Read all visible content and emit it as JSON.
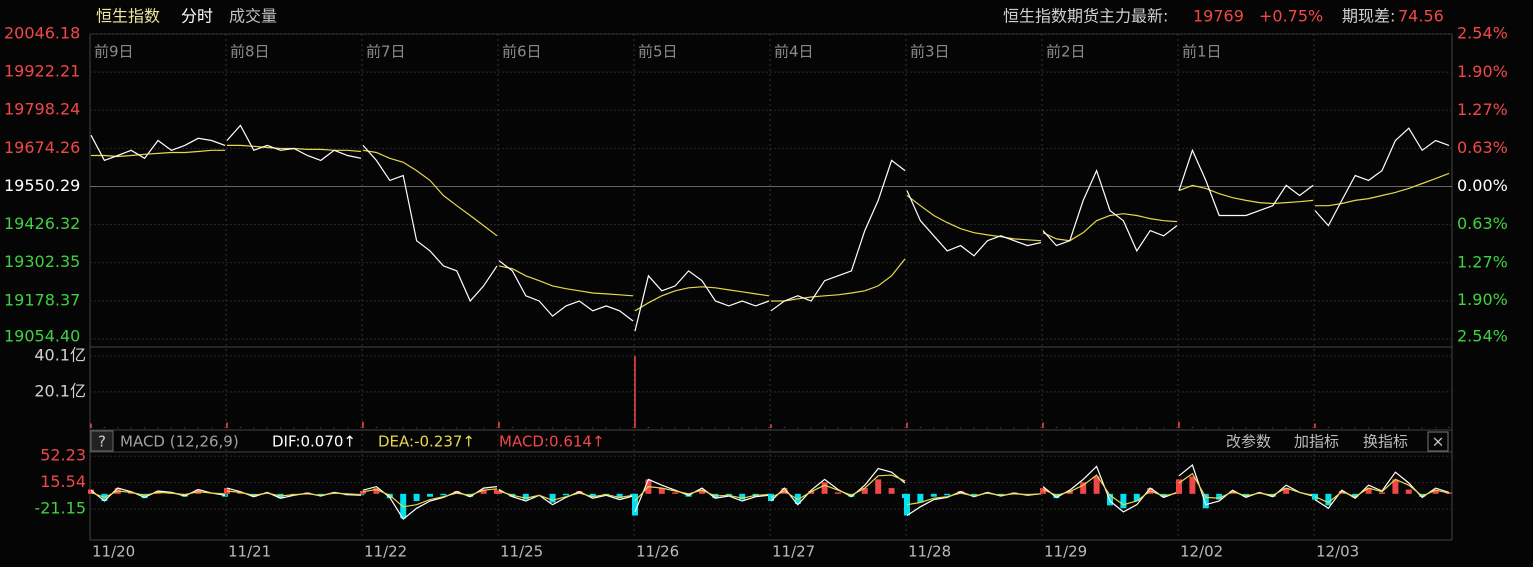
{
  "chart_data": {
    "type": "intraday",
    "header": {
      "title": "恒生指数",
      "tab1": "分时",
      "tab2": "成交量"
    },
    "futures": {
      "label": "恒生指数期货主力最新:",
      "price": 19769,
      "change": {
        "value": 0.75,
        "label": "+0.75%"
      },
      "spread_label": "期现差:",
      "spread": 74.56
    },
    "price_color": "#ffffff",
    "avg_color": "#e6d84a",
    "up_color": "#f04848",
    "down_color": "#3fd13f",
    "hist_up_color": "#f04848",
    "hist_down_color": "#00e0f0",
    "grid": true,
    "ylim": [
      19054.4,
      20046.18
    ],
    "yticks": [
      {
        "value": 20046.18,
        "label": "20046.18"
      },
      {
        "value": 19922.21,
        "label": "19922.21"
      },
      {
        "value": 19798.24,
        "label": "19798.24"
      },
      {
        "value": 19674.26,
        "label": "19674.26"
      },
      {
        "value": 19550.29,
        "label": "19550.29"
      },
      {
        "value": 19426.32,
        "label": "19426.32"
      },
      {
        "value": 19302.35,
        "label": "19302.35"
      },
      {
        "value": 19178.37,
        "label": "19178.37"
      },
      {
        "value": 19054.4,
        "label": "19054.40"
      }
    ],
    "y2lim": [
      -2.54,
      2.54
    ],
    "y2ticks": [
      {
        "value": 2.54,
        "label": "2.54%"
      },
      {
        "value": 1.9,
        "label": "1.90%"
      },
      {
        "value": 1.27,
        "label": "1.27%"
      },
      {
        "value": 0.63,
        "label": "0.63%"
      },
      {
        "value": 0,
        "label": "0.00%"
      },
      {
        "value": -0.63,
        "label": "0.63%"
      },
      {
        "value": -1.27,
        "label": "1.27%"
      },
      {
        "value": -1.9,
        "label": "1.90%"
      },
      {
        "value": -2.54,
        "label": "2.54%"
      }
    ],
    "volume_lim": [
      0,
      45
    ],
    "volume_ticks": [
      {
        "value": 40.1,
        "label": "40.1亿"
      },
      {
        "value": 20.1,
        "label": "20.1亿"
      }
    ],
    "macd_lim": [
      -64,
      58
    ],
    "macd_ticks": [
      52.23,
      15.54,
      -21.15
    ],
    "macd_header": {
      "help": "?",
      "name": "MACD (12,26,9)",
      "dif": "DIF:0.070↑",
      "dea": "DEA:-0.237↑",
      "macd": "MACD:0.614↑",
      "btn1": "改参数",
      "btn2": "加指标",
      "btn3": "换指标",
      "close": "×"
    },
    "days": [
      {
        "label": "前9日",
        "date": "11/20",
        "price": [
          19717,
          19635,
          19651,
          19668,
          19642,
          19700,
          19668,
          19684,
          19707,
          19700,
          19684
        ],
        "avg": [
          19651,
          19651,
          19648,
          19651,
          19655,
          19658,
          19661,
          19661,
          19664,
          19668,
          19668
        ],
        "volume": [
          2.5,
          0.3,
          0.2,
          0.2,
          0.2,
          0.2,
          0.2,
          0.2,
          0.2,
          0.2,
          0.3
        ],
        "dif": [
          5,
          -10,
          8,
          3,
          -5,
          4,
          2,
          -3,
          6,
          1,
          -2
        ],
        "dea": [
          2,
          -5,
          4,
          2,
          -2,
          2,
          1,
          -1,
          3,
          1,
          0
        ],
        "macd": [
          6,
          -10,
          8,
          2,
          -6,
          4,
          2,
          -4,
          6,
          0,
          -4
        ]
      },
      {
        "label": "前8日",
        "date": "11/21",
        "price": [
          19700,
          19749,
          19668,
          19684,
          19668,
          19674,
          19651,
          19635,
          19668,
          19651,
          19642
        ],
        "avg": [
          19684,
          19684,
          19681,
          19677,
          19674,
          19674,
          19671,
          19671,
          19668,
          19668,
          19664
        ],
        "volume": [
          3,
          0.3,
          0.2,
          0.2,
          0.2,
          0.2,
          0.2,
          0.2,
          0.2,
          0.2,
          0.3
        ],
        "dif": [
          8,
          3,
          -4,
          2,
          -6,
          -2,
          1,
          -3,
          2,
          -1,
          -2
        ],
        "dea": [
          4,
          2,
          -2,
          1,
          -3,
          -1,
          0,
          -2,
          1,
          0,
          -1
        ],
        "macd": [
          8,
          2,
          -4,
          2,
          -6,
          -2,
          2,
          -2,
          2,
          -2,
          -2
        ]
      },
      {
        "label": "前7日",
        "date": "11/22",
        "price": [
          19684,
          19635,
          19570,
          19586,
          19374,
          19341,
          19292,
          19276,
          19178,
          19227,
          19292
        ],
        "avg": [
          19668,
          19661,
          19642,
          19629,
          19602,
          19570,
          19521,
          19488,
          19456,
          19423,
          19390
        ],
        "volume": [
          3.5,
          0.3,
          0.2,
          0.2,
          0.2,
          0.2,
          0.2,
          0.2,
          0.2,
          0.2,
          0.3
        ],
        "dif": [
          5,
          10,
          -5,
          -35,
          -20,
          -10,
          -5,
          3,
          -4,
          8,
          10
        ],
        "dea": [
          3,
          6,
          -2,
          -18,
          -15,
          -8,
          -4,
          1,
          -2,
          5,
          7
        ],
        "macd": [
          4,
          8,
          -6,
          -34,
          -10,
          -4,
          -2,
          4,
          -4,
          6,
          6
        ]
      },
      {
        "label": "前6日",
        "date": "11/25",
        "price": [
          19309,
          19276,
          19195,
          19178,
          19129,
          19162,
          19178,
          19146,
          19162,
          19146,
          19113
        ],
        "avg": [
          19292,
          19283,
          19260,
          19244,
          19227,
          19218,
          19211,
          19204,
          19201,
          19198,
          19195
        ],
        "volume": [
          3.5,
          0.3,
          0.2,
          0.2,
          0.2,
          0.2,
          0.2,
          0.2,
          0.2,
          0.2,
          0.3
        ],
        "dif": [
          6,
          -4,
          -10,
          -2,
          -15,
          -5,
          3,
          -6,
          -2,
          -8,
          -3
        ],
        "dea": [
          4,
          -2,
          -6,
          -2,
          -9,
          -4,
          1,
          -4,
          -1,
          -5,
          -2
        ],
        "macd": [
          4,
          -4,
          -8,
          0,
          -12,
          -2,
          4,
          -4,
          -2,
          -6,
          -2
        ]
      },
      {
        "label": "前5日",
        "date": "11/26",
        "price": [
          19080,
          19260,
          19211,
          19227,
          19276,
          19244,
          19178,
          19162,
          19178,
          19162,
          19178
        ],
        "avg": [
          19146,
          19172,
          19195,
          19211,
          19221,
          19224,
          19221,
          19214,
          19208,
          19201,
          19195
        ],
        "volume": [
          40,
          0.4,
          0.2,
          0.2,
          0.2,
          0.2,
          0.2,
          0.2,
          0.2,
          0.2,
          0.3
        ],
        "dif": [
          -25,
          20,
          12,
          5,
          -2,
          8,
          -6,
          -3,
          -10,
          -4,
          -2
        ],
        "dea": [
          -10,
          10,
          8,
          4,
          0,
          5,
          -3,
          -2,
          -6,
          -2,
          -1
        ],
        "macd": [
          -30,
          20,
          8,
          2,
          -4,
          6,
          -6,
          -2,
          -8,
          -4,
          -2
        ]
      },
      {
        "label": "前4日",
        "date": "11/27",
        "price": [
          19146,
          19178,
          19195,
          19178,
          19244,
          19260,
          19276,
          19407,
          19505,
          19635,
          19602
        ],
        "avg": [
          19178,
          19178,
          19185,
          19191,
          19195,
          19198,
          19204,
          19211,
          19227,
          19260,
          19315
        ],
        "volume": [
          2,
          0.3,
          0.2,
          0.2,
          0.2,
          0.2,
          0.2,
          0.2,
          0.2,
          0.2,
          0.3
        ],
        "dif": [
          -10,
          8,
          -15,
          5,
          20,
          6,
          -4,
          12,
          35,
          30,
          15
        ],
        "dea": [
          -5,
          4,
          -8,
          3,
          12,
          5,
          -2,
          8,
          25,
          26,
          18
        ],
        "macd": [
          -10,
          8,
          -14,
          4,
          16,
          2,
          -4,
          8,
          20,
          8,
          -6
        ]
      },
      {
        "label": "前3日",
        "date": "11/28",
        "price": [
          19537,
          19439,
          19390,
          19341,
          19358,
          19325,
          19374,
          19390,
          19374,
          19358,
          19368
        ],
        "avg": [
          19521,
          19488,
          19456,
          19433,
          19413,
          19400,
          19393,
          19387,
          19380,
          19377,
          19374
        ],
        "volume": [
          3,
          0.3,
          0.2,
          0.2,
          0.2,
          0.2,
          0.2,
          0.2,
          0.2,
          0.2,
          0.3
        ],
        "dif": [
          -30,
          -18,
          -8,
          -5,
          3,
          -4,
          2,
          -3,
          1,
          -2,
          0
        ],
        "dea": [
          -15,
          -12,
          -6,
          -4,
          1,
          -3,
          1,
          -2,
          0,
          -1,
          0
        ],
        "macd": [
          -30,
          -12,
          -4,
          -2,
          4,
          -2,
          2,
          -2,
          2,
          -2,
          0
        ]
      },
      {
        "label": "前2日",
        "date": "11/29",
        "price": [
          19407,
          19358,
          19374,
          19505,
          19602,
          19472,
          19439,
          19341,
          19407,
          19390,
          19423
        ],
        "avg": [
          19400,
          19380,
          19374,
          19400,
          19439,
          19456,
          19462,
          19456,
          19446,
          19439,
          19436
        ],
        "volume": [
          3,
          0.3,
          0.2,
          0.2,
          0.2,
          0.2,
          0.2,
          0.2,
          0.2,
          0.2,
          0.3
        ],
        "dif": [
          10,
          -5,
          5,
          20,
          38,
          -10,
          -25,
          -15,
          8,
          -5,
          2
        ],
        "dea": [
          6,
          -2,
          3,
          12,
          26,
          -2,
          -15,
          -10,
          4,
          -3,
          1
        ],
        "macd": [
          8,
          -6,
          4,
          16,
          24,
          -16,
          -20,
          -10,
          8,
          -4,
          2
        ]
      },
      {
        "label": "前1日",
        "date": "12/02",
        "price": [
          19537,
          19668,
          19570,
          19456,
          19456,
          19456,
          19472,
          19488,
          19554,
          19521,
          19554
        ],
        "avg": [
          19537,
          19554,
          19544,
          19527,
          19514,
          19505,
          19498,
          19495,
          19498,
          19501,
          19505
        ],
        "volume": [
          3.5,
          0.3,
          0.2,
          0.2,
          0.2,
          0.2,
          0.2,
          0.2,
          0.2,
          0.2,
          0.3
        ],
        "dif": [
          25,
          40,
          -15,
          -10,
          5,
          -5,
          2,
          -4,
          12,
          2,
          -3
        ],
        "dea": [
          15,
          28,
          -5,
          -6,
          3,
          -3,
          1,
          -2,
          8,
          2,
          -2
        ],
        "macd": [
          20,
          24,
          -20,
          -8,
          4,
          -4,
          2,
          -4,
          8,
          0,
          -2
        ]
      },
      {
        "label": null,
        "date": "12/03",
        "price": [
          19472,
          19423,
          19505,
          19586,
          19570,
          19602,
          19700,
          19740,
          19668,
          19700,
          19684
        ],
        "avg": [
          19488,
          19488,
          19495,
          19505,
          19511,
          19521,
          19531,
          19544,
          19560,
          19576,
          19593
        ],
        "volume": [
          2.5,
          0.3,
          0.2,
          0.2,
          0.2,
          0.2,
          0.2,
          0.2,
          0.2,
          0.2,
          0.3
        ],
        "dif": [
          -8,
          -20,
          5,
          -6,
          12,
          4,
          30,
          15,
          -5,
          8,
          2
        ],
        "dea": [
          -4,
          -12,
          3,
          -4,
          8,
          3,
          20,
          12,
          -3,
          5,
          1
        ],
        "macd": [
          -8,
          -16,
          4,
          -4,
          8,
          2,
          20,
          6,
          -4,
          6,
          2
        ]
      }
    ]
  }
}
